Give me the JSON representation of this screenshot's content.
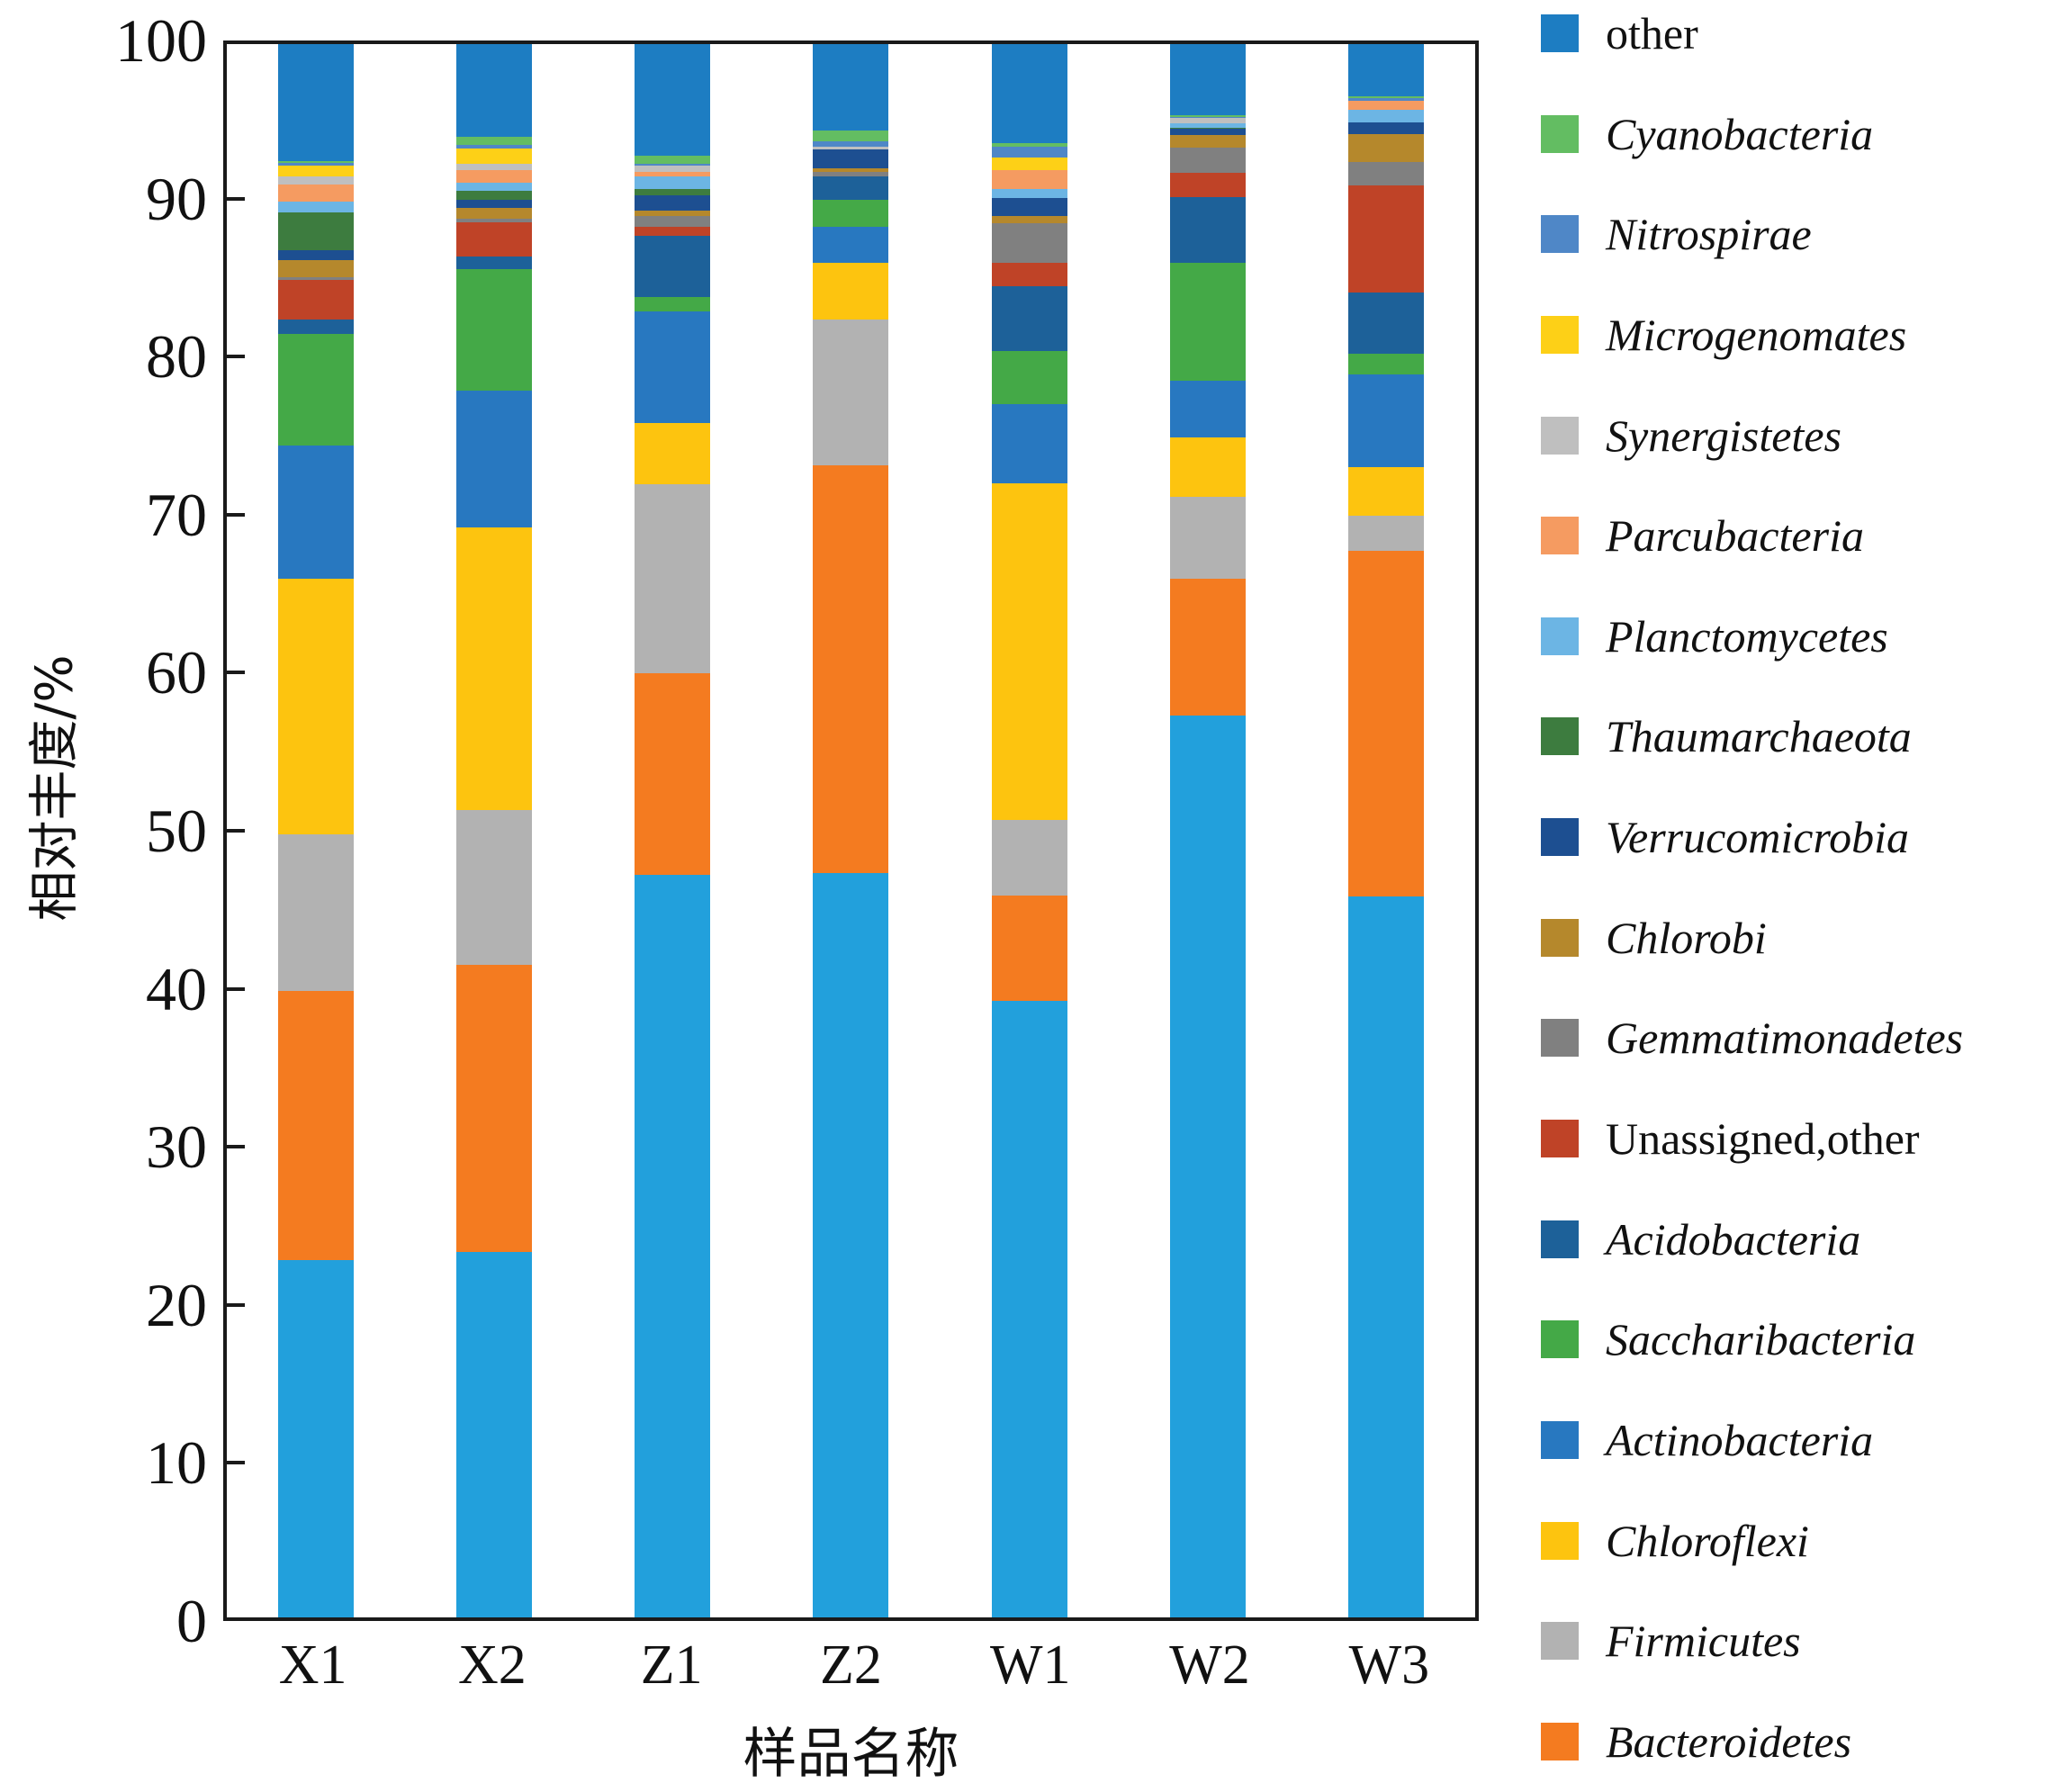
{
  "chart_data": {
    "type": "bar",
    "stacked": true,
    "xlabel": "样品名称",
    "ylabel": "相对丰度/%",
    "ylim": [
      0,
      100
    ],
    "yticks": [
      0,
      10,
      20,
      30,
      40,
      50,
      60,
      70,
      80,
      90,
      100
    ],
    "grid": false,
    "legend_position": "right",
    "categories": [
      "X1",
      "X2",
      "Z1",
      "Z2",
      "W1",
      "W2",
      "W3"
    ],
    "base_series": {
      "name": "",
      "color": "#22a0dc",
      "values": [
        22.7,
        23.2,
        47.2,
        47.3,
        39.2,
        57.3,
        45.8
      ]
    },
    "series": [
      {
        "name": "other",
        "color": "#1d7dc2",
        "italic": false,
        "values": [
          7.4,
          5.9,
          7.1,
          5.5,
          6.3,
          4.5,
          3.3
        ]
      },
      {
        "name": "Cyanobacteria",
        "color": "#63bd62",
        "italic": true,
        "values": [
          0.15,
          0.5,
          0.5,
          0.7,
          0.2,
          0.1,
          0.15
        ]
      },
      {
        "name": "Nitrospirae",
        "color": "#4f87c7",
        "italic": true,
        "values": [
          0.15,
          0.2,
          0.1,
          0.3,
          0.7,
          0.1,
          0.15
        ]
      },
      {
        "name": "Microgenomates",
        "color": "#fdd017",
        "italic": true,
        "values": [
          0.7,
          1.0,
          0.0,
          0.0,
          0.8,
          0.0,
          0.0
        ]
      },
      {
        "name": "Synergistetes",
        "color": "#bfbfbf",
        "italic": true,
        "values": [
          0.5,
          0.4,
          0.4,
          0.2,
          0.0,
          0.3,
          0.0
        ]
      },
      {
        "name": "Parcubacteria",
        "color": "#f59b61",
        "italic": true,
        "values": [
          1.1,
          0.8,
          0.3,
          0.0,
          1.2,
          0.0,
          0.6
        ]
      },
      {
        "name": "Planctomycetes",
        "color": "#6cb5e4",
        "italic": true,
        "values": [
          0.7,
          0.5,
          0.8,
          0.0,
          0.6,
          0.3,
          0.8
        ]
      },
      {
        "name": "Thaumarchaeota",
        "color": "#3d7c3f",
        "italic": true,
        "values": [
          2.4,
          0.6,
          0.4,
          0.0,
          0.0,
          0.1,
          0.0
        ]
      },
      {
        "name": "Verrucomicrobia",
        "color": "#1d4f91",
        "italic": true,
        "values": [
          0.6,
          0.5,
          1.0,
          1.2,
          1.1,
          0.4,
          0.7
        ]
      },
      {
        "name": "Chlorobi",
        "color": "#b5882c",
        "italic": true,
        "values": [
          1.1,
          0.7,
          0.3,
          0.2,
          0.5,
          0.8,
          1.8
        ]
      },
      {
        "name": "Gemmatimonadetes",
        "color": "#808080",
        "italic": true,
        "values": [
          0.2,
          0.2,
          0.7,
          0.3,
          2.5,
          1.6,
          1.5
        ]
      },
      {
        "name": "Unassigned,other",
        "color": "#bf4327",
        "italic": false,
        "values": [
          2.5,
          2.2,
          0.6,
          0.0,
          1.5,
          1.5,
          6.8
        ]
      },
      {
        "name": "Acidobacteria",
        "color": "#1d6199",
        "italic": true,
        "values": [
          0.9,
          0.8,
          3.9,
          1.5,
          4.1,
          4.2,
          3.9
        ]
      },
      {
        "name": "Saccharibacteria",
        "color": "#44a947",
        "italic": true,
        "values": [
          7.1,
          7.7,
          0.9,
          1.7,
          3.4,
          7.5,
          1.3
        ]
      },
      {
        "name": "Actinobacteria",
        "color": "#2878c0",
        "italic": true,
        "values": [
          8.5,
          8.7,
          7.1,
          2.3,
          5.0,
          3.6,
          5.9
        ]
      },
      {
        "name": "Chloroflexi",
        "color": "#fdc40f",
        "italic": true,
        "values": [
          16.2,
          18.0,
          3.9,
          3.6,
          21.4,
          3.8,
          3.1
        ]
      },
      {
        "name": "Firmicutes",
        "color": "#b2b2b2",
        "italic": true,
        "values": [
          10.0,
          9.8,
          12.0,
          9.3,
          4.8,
          5.2,
          2.2
        ]
      },
      {
        "name": "Bacteroidetes",
        "color": "#f47b20",
        "italic": true,
        "values": [
          17.1,
          18.3,
          12.8,
          25.9,
          6.7,
          8.7,
          22.0
        ]
      }
    ]
  }
}
